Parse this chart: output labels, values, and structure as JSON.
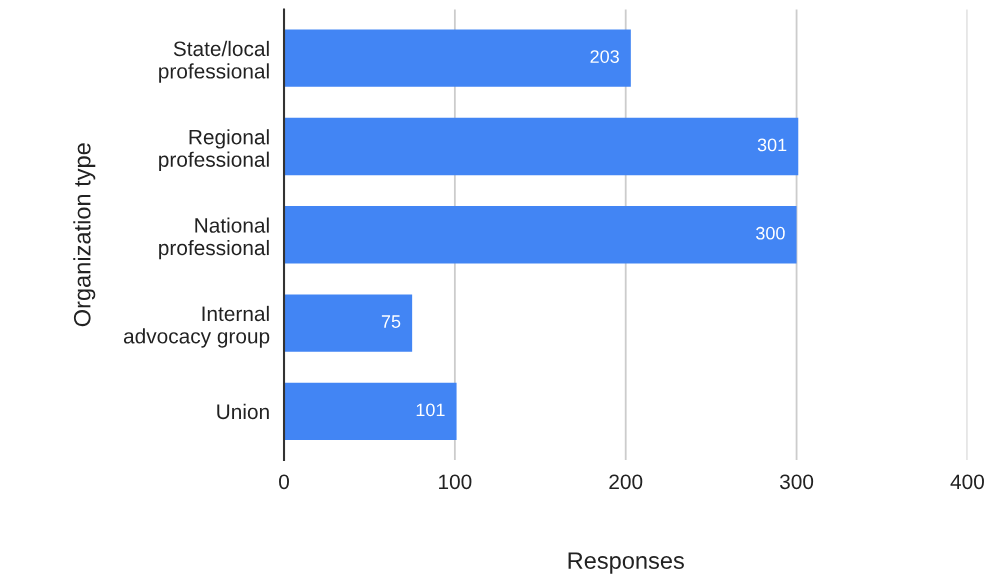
{
  "chart_data": {
    "type": "bar",
    "orientation": "horizontal",
    "xlabel": "Responses",
    "ylabel": "Organization type",
    "categories": [
      "State/local\nprofessional",
      "Regional\nprofessional",
      "National\nprofessional",
      "Internal\nadvocacy group",
      "Union"
    ],
    "values": [
      203,
      301,
      300,
      75,
      101
    ],
    "color": "#4285f4",
    "xlim": [
      0,
      400
    ],
    "xticks": [
      0,
      100,
      200,
      300,
      400
    ],
    "grid": "x",
    "data_labels": true
  }
}
